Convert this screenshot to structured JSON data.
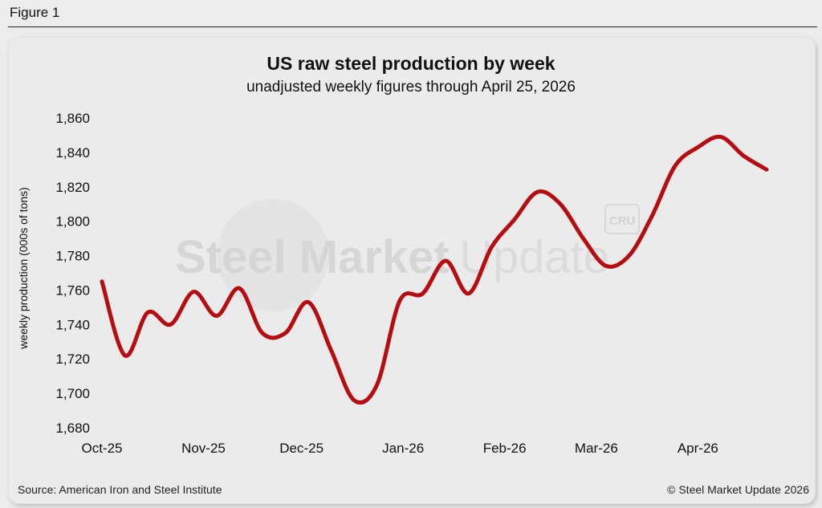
{
  "figure_label": "Figure 1",
  "source": "Source: American Iron and Steel Institute",
  "copyright": "© Steel Market Update 2026",
  "watermark": {
    "brand_bold": "Steel Market",
    "brand_light": "Update",
    "badge": "CRU",
    "color": "#d6d6d6"
  },
  "chart_data": {
    "type": "line",
    "title": "US raw steel production by week",
    "subtitle": "unadjusted weekly figures through April 25, 2026",
    "xlabel": "",
    "ylabel": "weekly production (000s of tons)",
    "ylim": [
      1680,
      1860
    ],
    "yticks": [
      1680,
      1700,
      1720,
      1740,
      1760,
      1780,
      1800,
      1820,
      1840,
      1860
    ],
    "ytick_labels": [
      "1,680",
      "1,700",
      "1,720",
      "1,740",
      "1,760",
      "1,780",
      "1,800",
      "1,820",
      "1,840",
      "1,860"
    ],
    "xticks": [
      0,
      4.43,
      8.71,
      13.14,
      17.57,
      21.57,
      26
    ],
    "xtick_labels": [
      "Oct-25",
      "Nov-25",
      "Dec-25",
      "Jan-26",
      "Feb-26",
      "Mar-26",
      "Apr-26"
    ],
    "xlim": [
      0,
      29
    ],
    "grid": false,
    "line_color": "#b80d10",
    "series": [
      {
        "name": "weekly production",
        "x": [
          0,
          1,
          2,
          3,
          4,
          5,
          6,
          7,
          8,
          9,
          10,
          11,
          12,
          13,
          14,
          15,
          16,
          17,
          18,
          19,
          20,
          21,
          22,
          23,
          24,
          25,
          26,
          27,
          28,
          29
        ],
        "values": [
          1765,
          1722,
          1747,
          1740,
          1759,
          1745,
          1761,
          1735,
          1735,
          1753,
          1725,
          1696,
          1705,
          1754,
          1758,
          1777,
          1758,
          1785,
          1801,
          1817,
          1810,
          1790,
          1774,
          1780,
          1803,
          1832,
          1843,
          1849,
          1838,
          1830
        ]
      }
    ]
  }
}
